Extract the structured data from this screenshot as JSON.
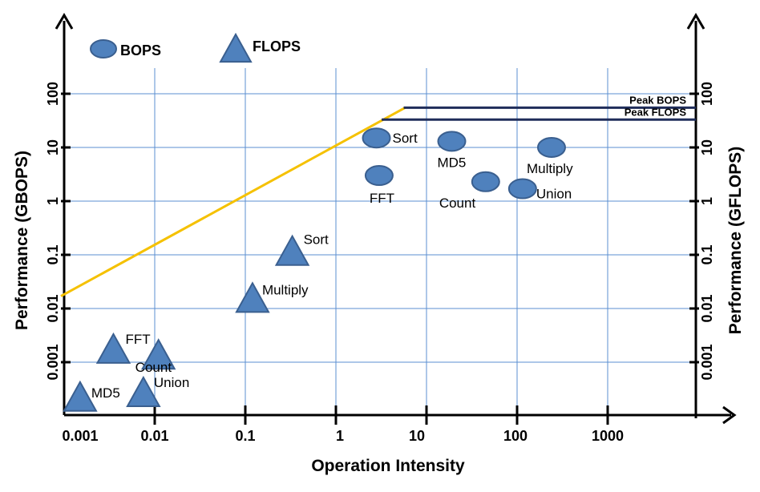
{
  "chart_data": {
    "type": "scatter",
    "x_scale": "log",
    "y_scale": "log",
    "xlabel": "Operation Intensity",
    "ylabel_left": "Performance (GBOPS)",
    "ylabel_right": "Performance (GFLOPS)",
    "x_ticks": [
      {
        "value": 0.001,
        "label": "0.001"
      },
      {
        "value": 0.01,
        "label": "0.01"
      },
      {
        "value": 0.1,
        "label": "0.1"
      },
      {
        "value": 1,
        "label": "1"
      },
      {
        "value": 10,
        "label": "10"
      },
      {
        "value": 100,
        "label": "100"
      },
      {
        "value": 1000,
        "label": "1000"
      }
    ],
    "y_ticks": [
      {
        "value": 0.001,
        "label": "0.001"
      },
      {
        "value": 0.01,
        "label": "0.01"
      },
      {
        "value": 0.1,
        "label": "0.1"
      },
      {
        "value": 1,
        "label": "1"
      },
      {
        "value": 10,
        "label": "10"
      },
      {
        "value": 100,
        "label": "100"
      }
    ],
    "legend": [
      {
        "name": "BOPS",
        "marker": "circle"
      },
      {
        "name": "FLOPS",
        "marker": "triangle"
      }
    ],
    "series": [
      {
        "name": "BOPS",
        "marker": "circle",
        "color": "#4f81bd",
        "points": [
          {
            "label": "Sort",
            "x": 2.8,
            "y": 15
          },
          {
            "label": "MD5",
            "x": 19,
            "y": 13
          },
          {
            "label": "FFT",
            "x": 3,
            "y": 3
          },
          {
            "label": "Count",
            "x": 45,
            "y": 2.3
          },
          {
            "label": "Union",
            "x": 115,
            "y": 1.7
          },
          {
            "label": "Multiply",
            "x": 240,
            "y": 10
          }
        ]
      },
      {
        "name": "FLOPS",
        "marker": "triangle",
        "color": "#4f81bd",
        "points": [
          {
            "label": "Sort",
            "x": 0.33,
            "y": 0.12
          },
          {
            "label": "Multiply",
            "x": 0.12,
            "y": 0.016
          },
          {
            "label": "FFT",
            "x": 0.0035,
            "y": 0.0018
          },
          {
            "label": "Count",
            "x": 0.011,
            "y": 0.0014
          },
          {
            "label": "MD5",
            "x": 0.0015,
            "y": 0.00023
          },
          {
            "label": "Union",
            "x": 0.0075,
            "y": 0.00028
          }
        ]
      }
    ],
    "roofline": {
      "color": "#f5c100",
      "slope_from": {
        "x": 0.00085,
        "y": 0.017
      },
      "slope_to": {
        "x": 5.8,
        "y": 55
      }
    },
    "peaks": [
      {
        "label": "Peak BOPS",
        "x_start": 5.6,
        "y": 55
      },
      {
        "label": "Peak FLOPS",
        "x_start": 3.2,
        "y": 33
      }
    ]
  }
}
